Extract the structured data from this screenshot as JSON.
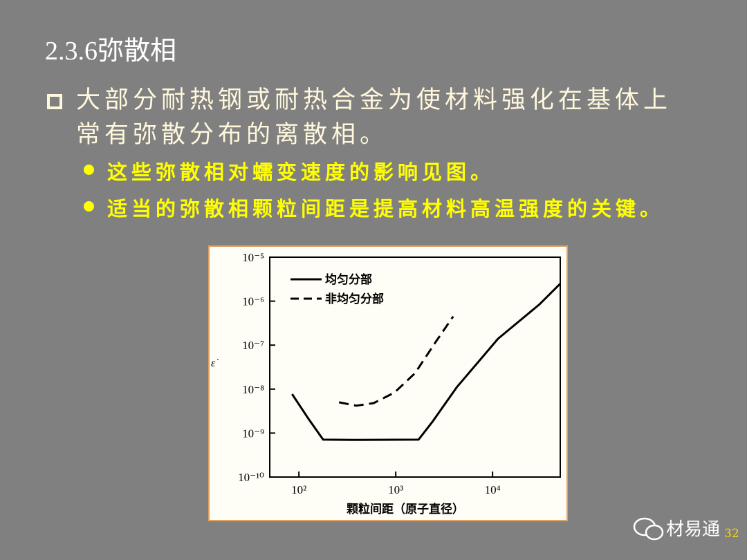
{
  "slide": {
    "title": "2.3.6弥散相",
    "bullets": [
      "大部分耐热钢或耐热合金为使材料强化在基体上常有弥散分布的离散相。"
    ],
    "sub_bullets": [
      "这些弥散相对蠕变速度的影响见图。",
      "适当的弥散相颗粒间距是提高材料高温强度的关键。"
    ],
    "watermark": "材易通",
    "page_number": "32"
  },
  "chart_data": {
    "type": "line",
    "xlabel": "颗粒间距（原子直径）",
    "ylabel": "ε̇",
    "xscale": "log",
    "yscale": "log",
    "xlim": [
      50,
      50000
    ],
    "ylim": [
      1e-10,
      1e-05
    ],
    "xticks": [
      {
        "value": 100,
        "label": "10²"
      },
      {
        "value": 1000,
        "label": "10³"
      },
      {
        "value": 10000,
        "label": "10⁴"
      }
    ],
    "yticks": [
      {
        "value": 1e-10,
        "label": "10⁻¹⁰"
      },
      {
        "value": 1e-09,
        "label": "10⁻⁹"
      },
      {
        "value": 1e-08,
        "label": "10⁻⁸"
      },
      {
        "value": 1e-07,
        "label": "10⁻⁷"
      },
      {
        "value": 1e-06,
        "label": "10⁻⁶"
      },
      {
        "value": 1e-05,
        "label": "10⁻⁵"
      }
    ],
    "legend": "top-left",
    "series": [
      {
        "name": "均匀分部",
        "color": "#000000",
        "dash": "solid",
        "x": [
          85,
          124,
          178,
          426,
          1720,
          2390,
          4260,
          11400,
          30600,
          50000
        ],
        "values": [
          7.7e-09,
          2.2e-09,
          7.1e-10,
          7e-10,
          7.1e-10,
          1.8e-09,
          1.1e-08,
          1.4e-07,
          8.5e-07,
          2.5e-06
        ]
      },
      {
        "name": "非均匀分部",
        "color": "#000000",
        "dash": "dashed",
        "x": [
          260,
          392,
          590,
          968,
          1580,
          2600,
          3920
        ],
        "values": [
          5e-09,
          4.2e-09,
          4.8e-09,
          8.3e-09,
          2.3e-08,
          1.2e-07,
          4.5e-07
        ]
      }
    ]
  }
}
